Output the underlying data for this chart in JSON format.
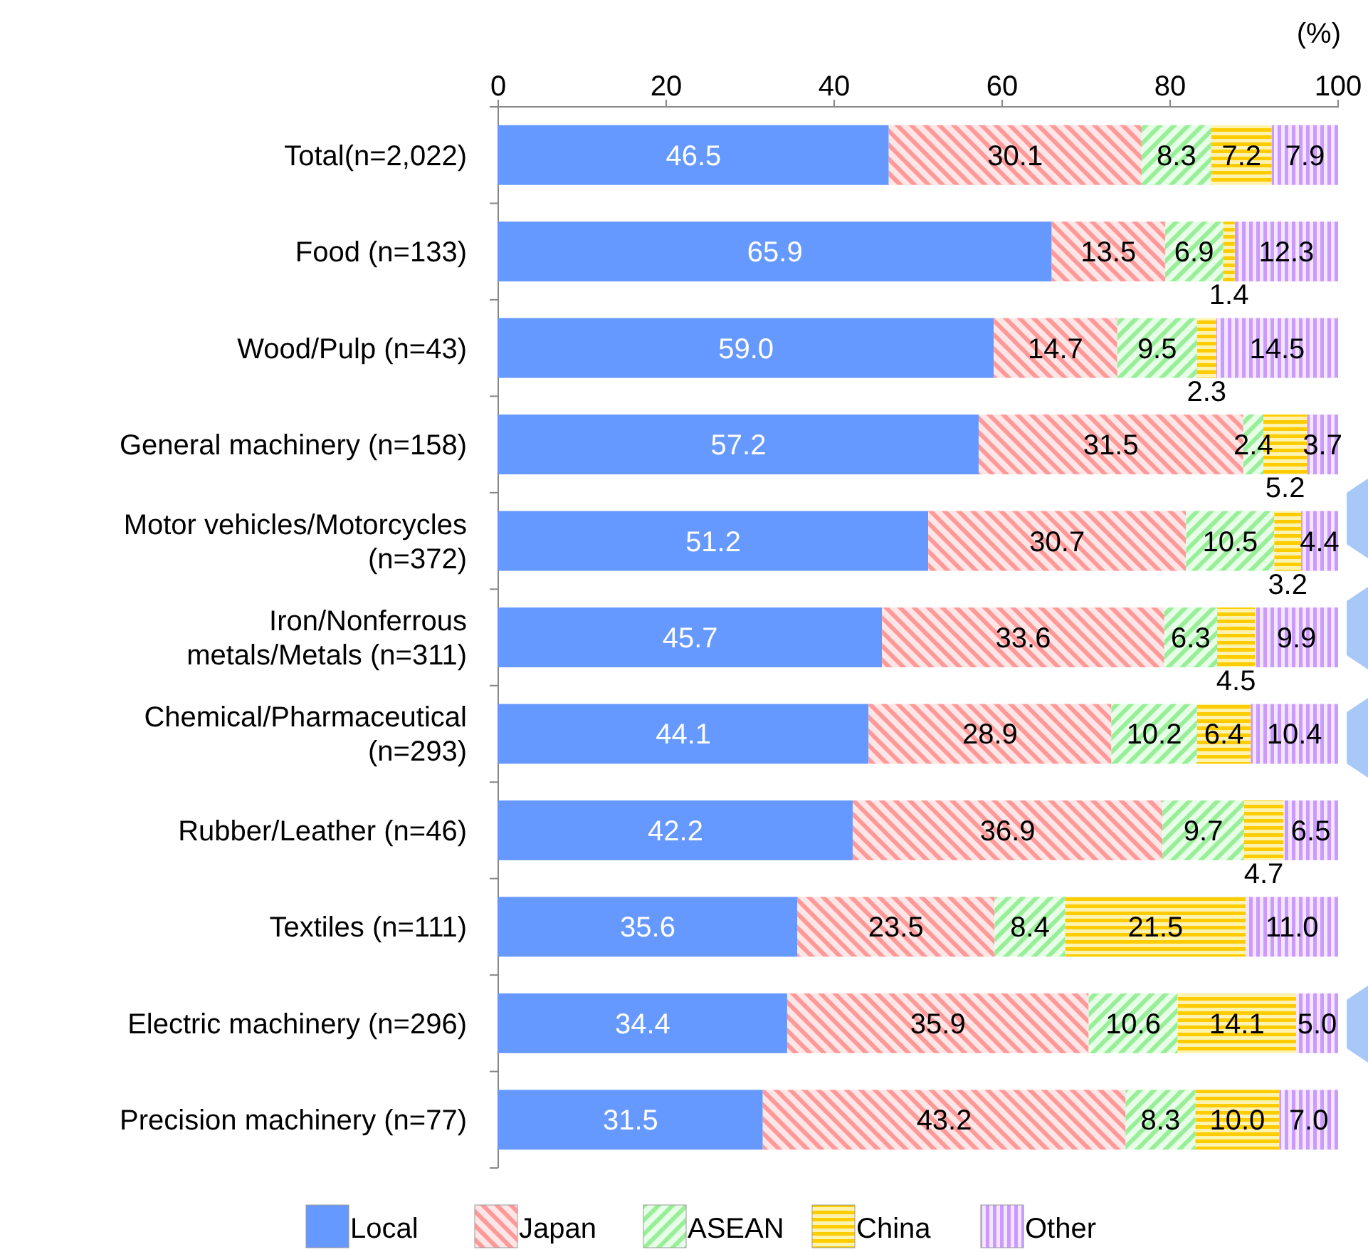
{
  "chart_data": {
    "type": "bar",
    "orientation": "horizontal",
    "stacked": true,
    "xlabel": "(%)",
    "categories": [
      "Total(n=2,022)",
      "Food (n=133)",
      "Wood/Pulp (n=43)",
      "General machinery (n=158)",
      "Motor vehicles/Motorcycles\n(n=372)",
      "Iron/Nonferrous\nmetals/Metals (n=311)",
      "Chemical/Pharmaceutical\n(n=293)",
      "Rubber/Leather (n=46)",
      "Textiles (n=111)",
      "Electric machinery (n=296)",
      "Precision machinery (n=77)"
    ],
    "series": [
      {
        "name": "Local",
        "color": "#6699ff",
        "values": [
          46.5,
          65.9,
          59.0,
          57.2,
          51.2,
          45.7,
          44.1,
          42.2,
          35.6,
          34.4,
          31.5
        ],
        "value_labels": [
          "46.5",
          "65.9",
          "59.0",
          "57.2",
          "51.2",
          "45.7",
          "44.1",
          "42.2",
          "35.6",
          "34.4",
          "31.5"
        ]
      },
      {
        "name": "Japan",
        "color": "#ff9999",
        "values": [
          30.1,
          13.5,
          14.7,
          31.5,
          30.7,
          33.6,
          28.9,
          36.9,
          23.5,
          35.9,
          43.2
        ],
        "value_labels": [
          "30.1",
          "13.5",
          "14.7",
          "31.5",
          "30.7",
          "33.6",
          "28.9",
          "36.9",
          "23.5",
          "35.9",
          "43.2"
        ]
      },
      {
        "name": "ASEAN",
        "color": "#99ee99",
        "values": [
          8.3,
          6.9,
          9.5,
          2.4,
          10.5,
          6.3,
          10.2,
          9.7,
          8.4,
          10.6,
          8.3
        ],
        "value_labels": [
          "8.3",
          "6.9",
          "9.5",
          "2.4",
          "10.5",
          "6.3",
          "10.2",
          "9.7",
          "8.4",
          "10.6",
          "8.3"
        ]
      },
      {
        "name": "China",
        "color": "#ffcc00",
        "values": [
          7.2,
          1.4,
          2.3,
          5.2,
          3.2,
          4.5,
          6.4,
          4.7,
          21.5,
          14.1,
          10.0
        ],
        "value_labels": [
          "7.2",
          "1.4",
          "2.3",
          "5.2",
          "3.2",
          "4.5",
          "6.4",
          "4.7",
          "21.5",
          "14.1",
          "10.0"
        ]
      },
      {
        "name": "Other",
        "color": "#cc99ff",
        "values": [
          7.9,
          12.3,
          14.5,
          3.7,
          4.4,
          9.9,
          10.4,
          6.5,
          11.0,
          5.0,
          7.0
        ],
        "value_labels": [
          "7.9",
          "12.3",
          "14.5",
          "3.7",
          "4.4",
          "9.9",
          "10.4",
          "6.5",
          "11.0",
          "5.0",
          "7.0"
        ]
      }
    ],
    "xlim": [
      0,
      100
    ],
    "xticks": [
      0,
      20,
      40,
      60,
      80,
      100
    ],
    "legend": "bottom",
    "grid": false
  }
}
